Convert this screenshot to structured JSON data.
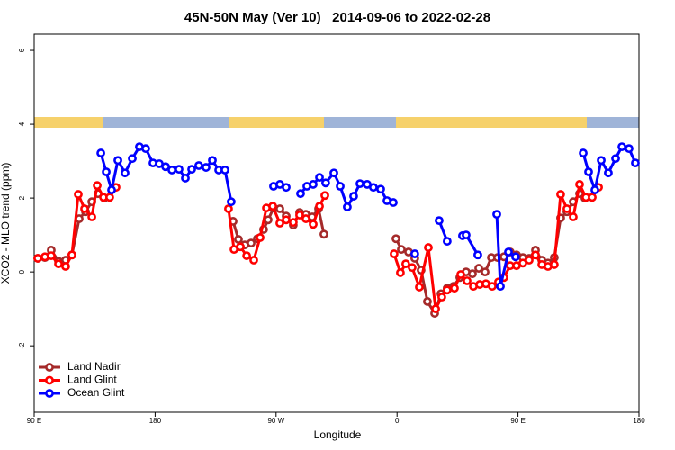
{
  "chart_data": {
    "type": "line",
    "title": "45N-50N May (Ver 10)   2014-09-06 to 2022-02-28",
    "x_label": "Longitude",
    "y_label": "XCO2 - MLO trend (ppm)",
    "xlim": [
      90,
      540
    ],
    "ylim": [
      -3.8,
      6.44
    ],
    "xticks": [
      {
        "value": 90,
        "label": "90 E"
      },
      {
        "value": 180,
        "label": "180"
      },
      {
        "value": 270,
        "label": "90 W"
      },
      {
        "value": 360,
        "label": "0"
      },
      {
        "value": 450,
        "label": "90 E"
      },
      {
        "value": 540,
        "label": "180"
      }
    ],
    "yticks": [
      -2,
      0,
      2,
      4,
      6
    ],
    "legend": "bottom-left",
    "series": [
      {
        "name": "Land Nadir",
        "color": "#a52a2a",
        "x": [
          92.7,
          98,
          102.7,
          108.1,
          113.4,
          118.1,
          123.5,
          128.2,
          132.9,
          137.5,
          142.2,
          null,
          238,
          242,
          246.7,
          251.4,
          256.1,
          260.7,
          264.1,
          268.1,
          272.8,
          277.5,
          282.8,
          287.5,
          292.2,
          296.9,
          301.6,
          305.6,
          null,
          359.2,
          363.2,
          368.6,
          373.2,
          377.9,
          382.6,
          388,
          392.7,
          397.3,
          402,
          406.7,
          411.4,
          416.1,
          420.8,
          425.5,
          430.2,
          434.8,
          439.5,
          444.2,
          448.9,
          453.6,
          458.3,
          463,
          467.7,
          472.3,
          477,
          481.7,
          486.4,
          491.1,
          495.8,
          499.8
        ],
        "values": [
          0.37,
          0.39,
          0.59,
          0.29,
          0.32,
          0.46,
          1.44,
          1.63,
          1.9,
          2.12,
          2.0,
          null,
          1.37,
          0.88,
          0.73,
          0.78,
          0.9,
          1.15,
          1.41,
          1.73,
          1.71,
          1.51,
          1.27,
          1.61,
          1.56,
          1.49,
          1.71,
          1.02,
          null,
          0.9,
          0.61,
          0.54,
          0.37,
          0.05,
          -0.8,
          -1.12,
          -0.59,
          -0.44,
          -0.39,
          -0.15,
          0,
          -0.05,
          0.1,
          0,
          0.39,
          0.39,
          0.41,
          0.54,
          0.46,
          0.39,
          0.37,
          0.59,
          0.32,
          0.24,
          0.39,
          1.46,
          1.63,
          1.9,
          2.12,
          2.0
        ]
      },
      {
        "name": "Land Glint",
        "color": "#ff0000",
        "x": [
          92.7,
          98,
          102.7,
          108.1,
          113.4,
          118.1,
          122.8,
          127.5,
          132.9,
          136.9,
          141.6,
          146.2,
          150.9,
          null,
          234.6,
          238.7,
          243.4,
          248.1,
          253.4,
          258.1,
          262.8,
          267.5,
          272.8,
          277.5,
          282.8,
          287.5,
          292.2,
          297.6,
          302.3,
          306.3,
          null,
          357.8,
          362.5,
          366.5,
          371.2,
          376.6,
          383.3,
          388.7,
          393.3,
          397.3,
          402.7,
          407.4,
          412.1,
          416.8,
          421.5,
          426.1,
          430.8,
          435.5,
          439.5,
          444.2,
          448.9,
          453.6,
          458.3,
          463,
          467.7,
          472.3,
          477,
          481.7,
          486.4,
          491.1,
          495.8,
          500.5,
          505.2,
          509.9
        ],
        "values": [
          0.37,
          0.41,
          0.44,
          0.22,
          0.15,
          0.46,
          2.1,
          1.71,
          1.49,
          2.34,
          2.02,
          2.02,
          2.29,
          null,
          1.71,
          0.61,
          0.68,
          0.44,
          0.32,
          0.93,
          1.73,
          1.78,
          1.32,
          1.41,
          1.34,
          1.54,
          1.44,
          1.29,
          1.78,
          2.07,
          null,
          0.49,
          -0.02,
          0.22,
          0.12,
          -0.41,
          0.66,
          -1.0,
          -0.68,
          -0.49,
          -0.44,
          -0.07,
          -0.24,
          -0.39,
          -0.34,
          -0.32,
          -0.39,
          -0.27,
          -0.15,
          0.17,
          0.17,
          0.24,
          0.32,
          0.46,
          0.2,
          0.15,
          0.2,
          2.1,
          1.71,
          1.49,
          2.37,
          2.02,
          2.02,
          2.29
        ]
      },
      {
        "name": "Ocean Glint",
        "color": "#0000ff",
        "x": [
          139.6,
          143.6,
          147.6,
          152.3,
          157.6,
          163,
          168.3,
          173,
          178.4,
          183.1,
          187.8,
          192.5,
          197.8,
          202.5,
          207.2,
          212.5,
          217.9,
          222.6,
          227.3,
          232,
          236.6,
          null,
          268.1,
          272.8,
          277.5,
          null,
          288.2,
          292.9,
          297.6,
          302.3,
          306.9,
          313,
          317.7,
          323,
          327.7,
          332.4,
          337.8,
          342.4,
          347.8,
          352.5,
          357.2,
          null,
          373.2,
          null,
          391.3,
          397.3,
          null,
          408.7,
          411.4,
          420.1,
          null,
          434.2,
          436.9,
          442.9,
          448.2,
          null,
          498.5,
          502.5,
          507.2,
          511.9,
          517.2,
          522.6,
          527.3,
          532.6,
          537.3
        ],
        "values": [
          3.22,
          2.71,
          2.22,
          3.02,
          2.68,
          3.07,
          3.39,
          3.34,
          2.95,
          2.93,
          2.85,
          2.76,
          2.78,
          2.54,
          2.78,
          2.88,
          2.83,
          3.02,
          2.76,
          2.76,
          1.9,
          null,
          2.32,
          2.37,
          2.29,
          null,
          2.12,
          2.32,
          2.37,
          2.56,
          2.41,
          2.68,
          2.32,
          1.76,
          2.05,
          2.39,
          2.37,
          2.29,
          2.24,
          1.93,
          1.88,
          null,
          0.49,
          null,
          1.39,
          0.83,
          null,
          0.98,
          1.0,
          0.46,
          null,
          1.56,
          -0.39,
          0.54,
          0.41,
          null,
          3.22,
          2.71,
          2.22,
          3.02,
          2.68,
          3.07,
          3.39,
          3.34,
          2.95
        ]
      }
    ]
  }
}
